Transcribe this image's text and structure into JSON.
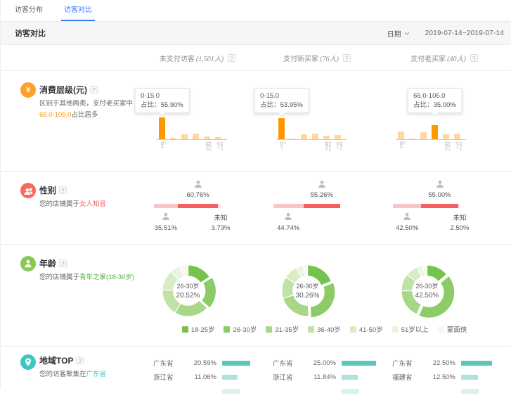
{
  "colors": {
    "accent_blue": "#3a7bfd",
    "orange": "#ff9800",
    "orange_light": "#ffd8a0",
    "red": "#f46060",
    "pink_light": "#f8c6c4",
    "pink_pale": "#fce3e3",
    "icon_orange": "#ffa02e",
    "icon_red": "#f9695a",
    "icon_green": "#8cc854",
    "icon_teal": "#3fc6c0"
  },
  "tabs": [
    {
      "label": "访客分布",
      "active": false
    },
    {
      "label": "访客对比",
      "active": true
    }
  ],
  "header": {
    "title": "访客对比",
    "date_label": "日期",
    "date_range": "2019-07-14~2019-07-14"
  },
  "columns": [
    {
      "name": "未支付访客",
      "count": "(1,501人)"
    },
    {
      "name": "支付新买家",
      "count": "(76人)"
    },
    {
      "name": "支付老买家",
      "count": "(40人)"
    }
  ],
  "consumption": {
    "title": "消费层级(元)",
    "desc_prefix": "区别于其他两类，支付老买家中",
    "desc_highlight": "65.0-105.0",
    "desc_suffix": "占比居多",
    "axis_ticks": [
      "0-15.0",
      "105.0-140.0",
      "140.0以上"
    ],
    "charts": [
      {
        "tooltip_range": "0-15.0",
        "tooltip_pct": "占比：55.90%",
        "values": [
          55.9,
          4,
          12,
          15,
          7,
          5
        ],
        "highlight": 0
      },
      {
        "tooltip_range": "0-15.0",
        "tooltip_pct": "占比：53.95%",
        "values": [
          53.95,
          2,
          13,
          14,
          9,
          10
        ],
        "highlight": 0
      },
      {
        "tooltip_range": "65.0-105.0",
        "tooltip_pct": "占比：35.00%",
        "values": [
          20,
          2,
          18,
          35,
          12,
          15
        ],
        "highlight": 3
      }
    ]
  },
  "gender": {
    "title": "性别",
    "desc_prefix": "您的店铺属于",
    "desc_highlight": "女人知音",
    "unknown_label": "未知",
    "charts": [
      {
        "female": 60.76,
        "male": 35.51,
        "unknown": 3.73
      },
      {
        "female": 55.26,
        "male": 44.74,
        "unknown": null
      },
      {
        "female": 55.0,
        "male": 42.5,
        "unknown": 2.5
      }
    ]
  },
  "age": {
    "title": "年龄",
    "desc_prefix": "您的店铺属于",
    "desc_highlight": "青年之家(18-30岁)",
    "legend": [
      "18-25岁",
      "26-30岁",
      "31-35岁",
      "36-40岁",
      "41-50岁",
      "51岁以上",
      "蒙面侠"
    ],
    "palette": [
      "#76c24e",
      "#8ccb67",
      "#a8d787",
      "#c0e2a5",
      "#d8edc5",
      "#e9f5de",
      "#f3faee"
    ],
    "charts": [
      {
        "center_label": "26-30岁",
        "center_value": "20.52%",
        "values": [
          16,
          20.52,
          22,
          17,
          13,
          6.5,
          4.98
        ],
        "highlight": 1
      },
      {
        "center_label": "26-30岁",
        "center_value": "30.26%",
        "values": [
          19,
          30.26,
          21,
          13.5,
          9,
          4.5,
          2.74
        ],
        "highlight": 1
      },
      {
        "center_label": "26-30岁",
        "center_value": "42.50%",
        "values": [
          14,
          42.5,
          18.5,
          11,
          8,
          3.5,
          2.5
        ],
        "highlight": 1
      }
    ]
  },
  "region": {
    "title": "地域TOP",
    "desc_prefix": "您的访客聚集在",
    "desc_highlight": "广东省",
    "bar_palette": [
      "#5ec5bb",
      "#a9e4df",
      "#d9f2ef"
    ],
    "lists": [
      [
        {
          "name": "广东省",
          "pct": "20.59%",
          "value": 20.59
        },
        {
          "name": "浙江省",
          "pct": "11.06%",
          "value": 11.06
        },
        {
          "name": "",
          "pct": "",
          "value": 13
        }
      ],
      [
        {
          "name": "广东省",
          "pct": "25.00%",
          "value": 25.0
        },
        {
          "name": "浙江省",
          "pct": "11.84%",
          "value": 11.84
        },
        {
          "name": "",
          "pct": "",
          "value": 13
        }
      ],
      [
        {
          "name": "广东省",
          "pct": "22.50%",
          "value": 22.5
        },
        {
          "name": "福建省",
          "pct": "12.50%",
          "value": 12.5
        },
        {
          "name": "",
          "pct": "",
          "value": 13
        }
      ]
    ]
  }
}
